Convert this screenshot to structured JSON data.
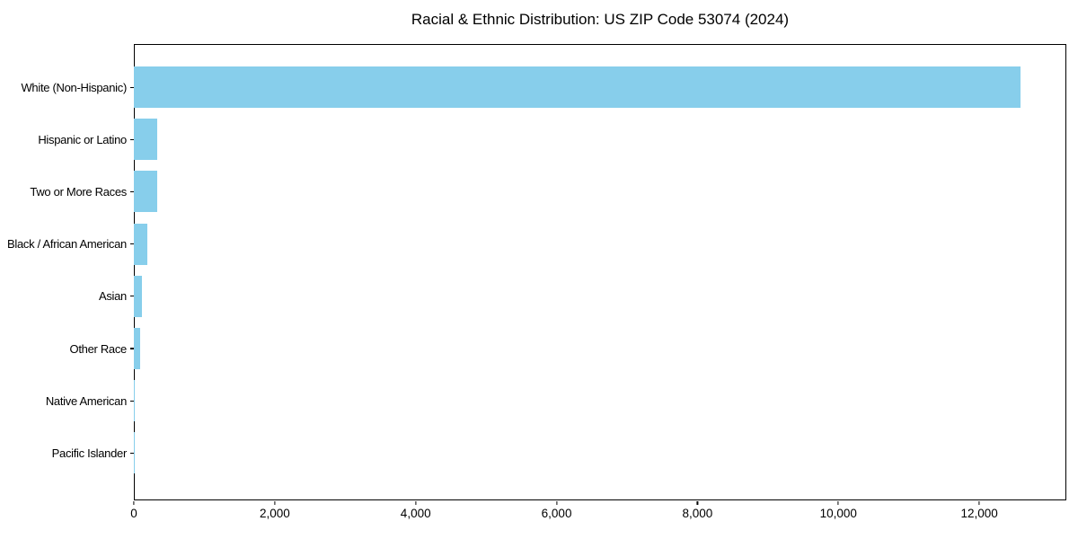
{
  "chart_data": {
    "type": "bar",
    "orientation": "horizontal",
    "title": "Racial & Ethnic Distribution: US ZIP Code 53074 (2024)",
    "categories": [
      "White (Non-Hispanic)",
      "Hispanic or Latino",
      "Two or More Races",
      "Black / African American",
      "Asian",
      "Other Race",
      "Native American",
      "Pacific Islander"
    ],
    "values": [
      12590,
      332,
      330,
      185,
      110,
      95,
      15,
      2
    ],
    "xlabel": "",
    "ylabel": "",
    "xlim": [
      0,
      13235
    ],
    "x_ticks": [
      0,
      2000,
      4000,
      6000,
      8000,
      10000,
      12000
    ],
    "x_tick_labels": [
      "0",
      "2,000",
      "4,000",
      "6,000",
      "8,000",
      "10,000",
      "12,000"
    ],
    "bar_color": "#87CEEB",
    "background_color": "#ffffff",
    "axis_color": "#000000",
    "grid": false,
    "legend": null
  }
}
